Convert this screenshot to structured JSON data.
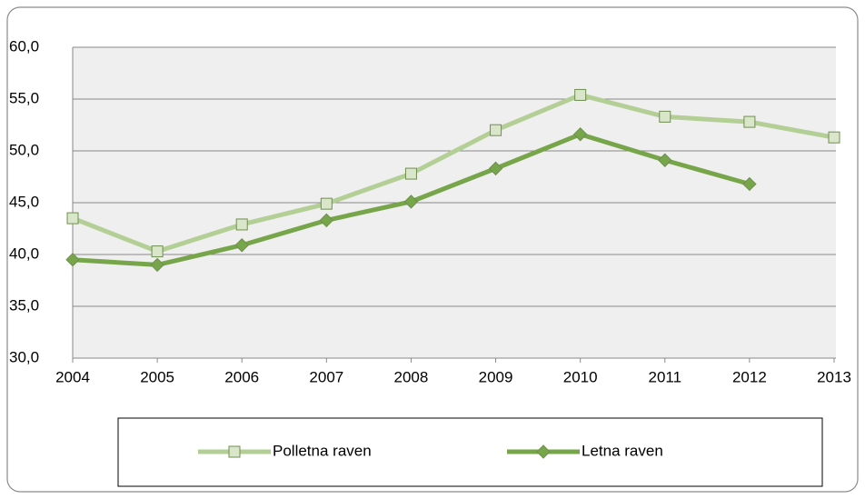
{
  "chart_data": {
    "type": "line",
    "categories": [
      "2004",
      "2005",
      "2006",
      "2007",
      "2008",
      "2009",
      "2010",
      "2011",
      "2012",
      "2013"
    ],
    "series": [
      {
        "name": "Polletna raven",
        "color": "#b3cf95",
        "marker": "square",
        "values": [
          43.5,
          40.3,
          42.9,
          44.9,
          47.8,
          52.0,
          55.4,
          53.3,
          52.8,
          51.3
        ]
      },
      {
        "name": "Letna raven",
        "color": "#77a54a",
        "marker": "diamond",
        "values": [
          39.5,
          39.0,
          40.9,
          43.3,
          45.1,
          48.3,
          51.6,
          49.1,
          46.8,
          null
        ]
      }
    ],
    "ylim": [
      30,
      60
    ],
    "yticks": [
      {
        "value": 30,
        "label": "30,0"
      },
      {
        "value": 35,
        "label": "35,0"
      },
      {
        "value": 40,
        "label": "40,0"
      },
      {
        "value": 45,
        "label": "45,0"
      },
      {
        "value": 50,
        "label": "50,0"
      },
      {
        "value": 55,
        "label": "55,0"
      },
      {
        "value": 60,
        "label": "60,0"
      }
    ],
    "grid": true
  }
}
